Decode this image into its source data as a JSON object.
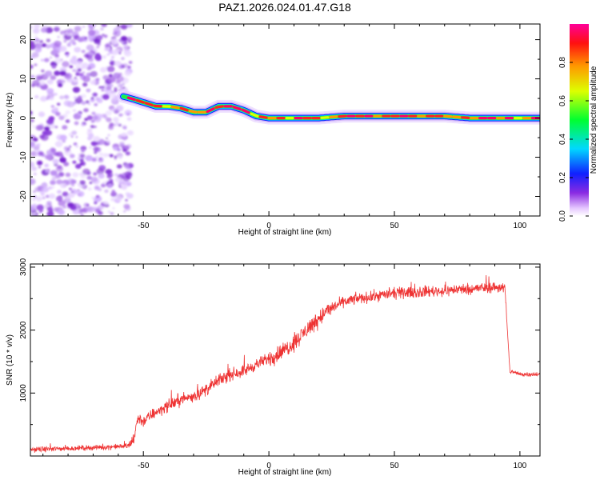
{
  "title": "PAZ1.2026.024.01.47.G18",
  "chart_data": [
    {
      "type": "heatmap",
      "xlabel": "Height of straight line (km)",
      "ylabel": "Frequency (Hz)",
      "xlim": [
        -95,
        108
      ],
      "ylim": [
        -25,
        24
      ],
      "x_ticks": [
        -50,
        0,
        50,
        100
      ],
      "x_tick_labels": [
        "-50",
        "0",
        "50",
        "100"
      ],
      "y_ticks": [
        -20,
        -10,
        0,
        10,
        20
      ],
      "y_tick_labels": [
        "-20",
        "-10",
        "0",
        "10",
        "20"
      ],
      "noise_region_x": [
        -95,
        -55
      ],
      "ridge": {
        "x": [
          -58,
          -55,
          -50,
          -45,
          -40,
          -35,
          -30,
          -25,
          -20,
          -15,
          -10,
          -5,
          0,
          10,
          20,
          30,
          40,
          50,
          60,
          70,
          80,
          90,
          100,
          108
        ],
        "y": [
          5.5,
          5,
          4,
          3,
          3,
          2.5,
          1.5,
          1.5,
          3,
          3,
          2,
          0.5,
          0,
          0,
          0,
          0.5,
          0.5,
          0.5,
          0.5,
          0.5,
          0,
          0,
          0,
          0
        ]
      },
      "colorbar": {
        "label": "Normalized spectral amplitude",
        "ticks": [
          0.0,
          0.2,
          0.4,
          0.6,
          0.8
        ],
        "tick_labels": [
          "0.0",
          "0.2",
          "0.4",
          "0.6",
          "0.8"
        ],
        "range": [
          0,
          1
        ]
      }
    },
    {
      "type": "line",
      "xlabel": "Height of straight line (km)",
      "ylabel": "SNR (10 * v/v)",
      "xlim": [
        -95,
        108
      ],
      "ylim": [
        0,
        3050
      ],
      "x_ticks": [
        -50,
        0,
        50,
        100
      ],
      "x_tick_labels": [
        "-50",
        "0",
        "50",
        "100"
      ],
      "y_ticks": [
        1000,
        2000,
        3000
      ],
      "y_tick_labels": [
        "1000",
        "2000",
        "3000"
      ],
      "series": [
        {
          "name": "SNR",
          "color": "#ee3333",
          "x": [
            -95,
            -80,
            -65,
            -56,
            -54,
            -52,
            -50,
            -45,
            -40,
            -35,
            -30,
            -25,
            -20,
            -15,
            -10,
            -5,
            0,
            5,
            10,
            15,
            20,
            25,
            30,
            35,
            40,
            45,
            50,
            55,
            60,
            65,
            70,
            75,
            80,
            85,
            90,
            94,
            95,
            96,
            100,
            108
          ],
          "y": [
            100,
            120,
            140,
            160,
            250,
            600,
            550,
            700,
            800,
            900,
            950,
            1050,
            1200,
            1300,
            1350,
            1450,
            1550,
            1650,
            1800,
            2000,
            2200,
            2350,
            2450,
            2500,
            2520,
            2560,
            2580,
            2600,
            2600,
            2620,
            2620,
            2650,
            2650,
            2670,
            2680,
            2680,
            2000,
            1350,
            1300,
            1300
          ]
        }
      ]
    }
  ]
}
